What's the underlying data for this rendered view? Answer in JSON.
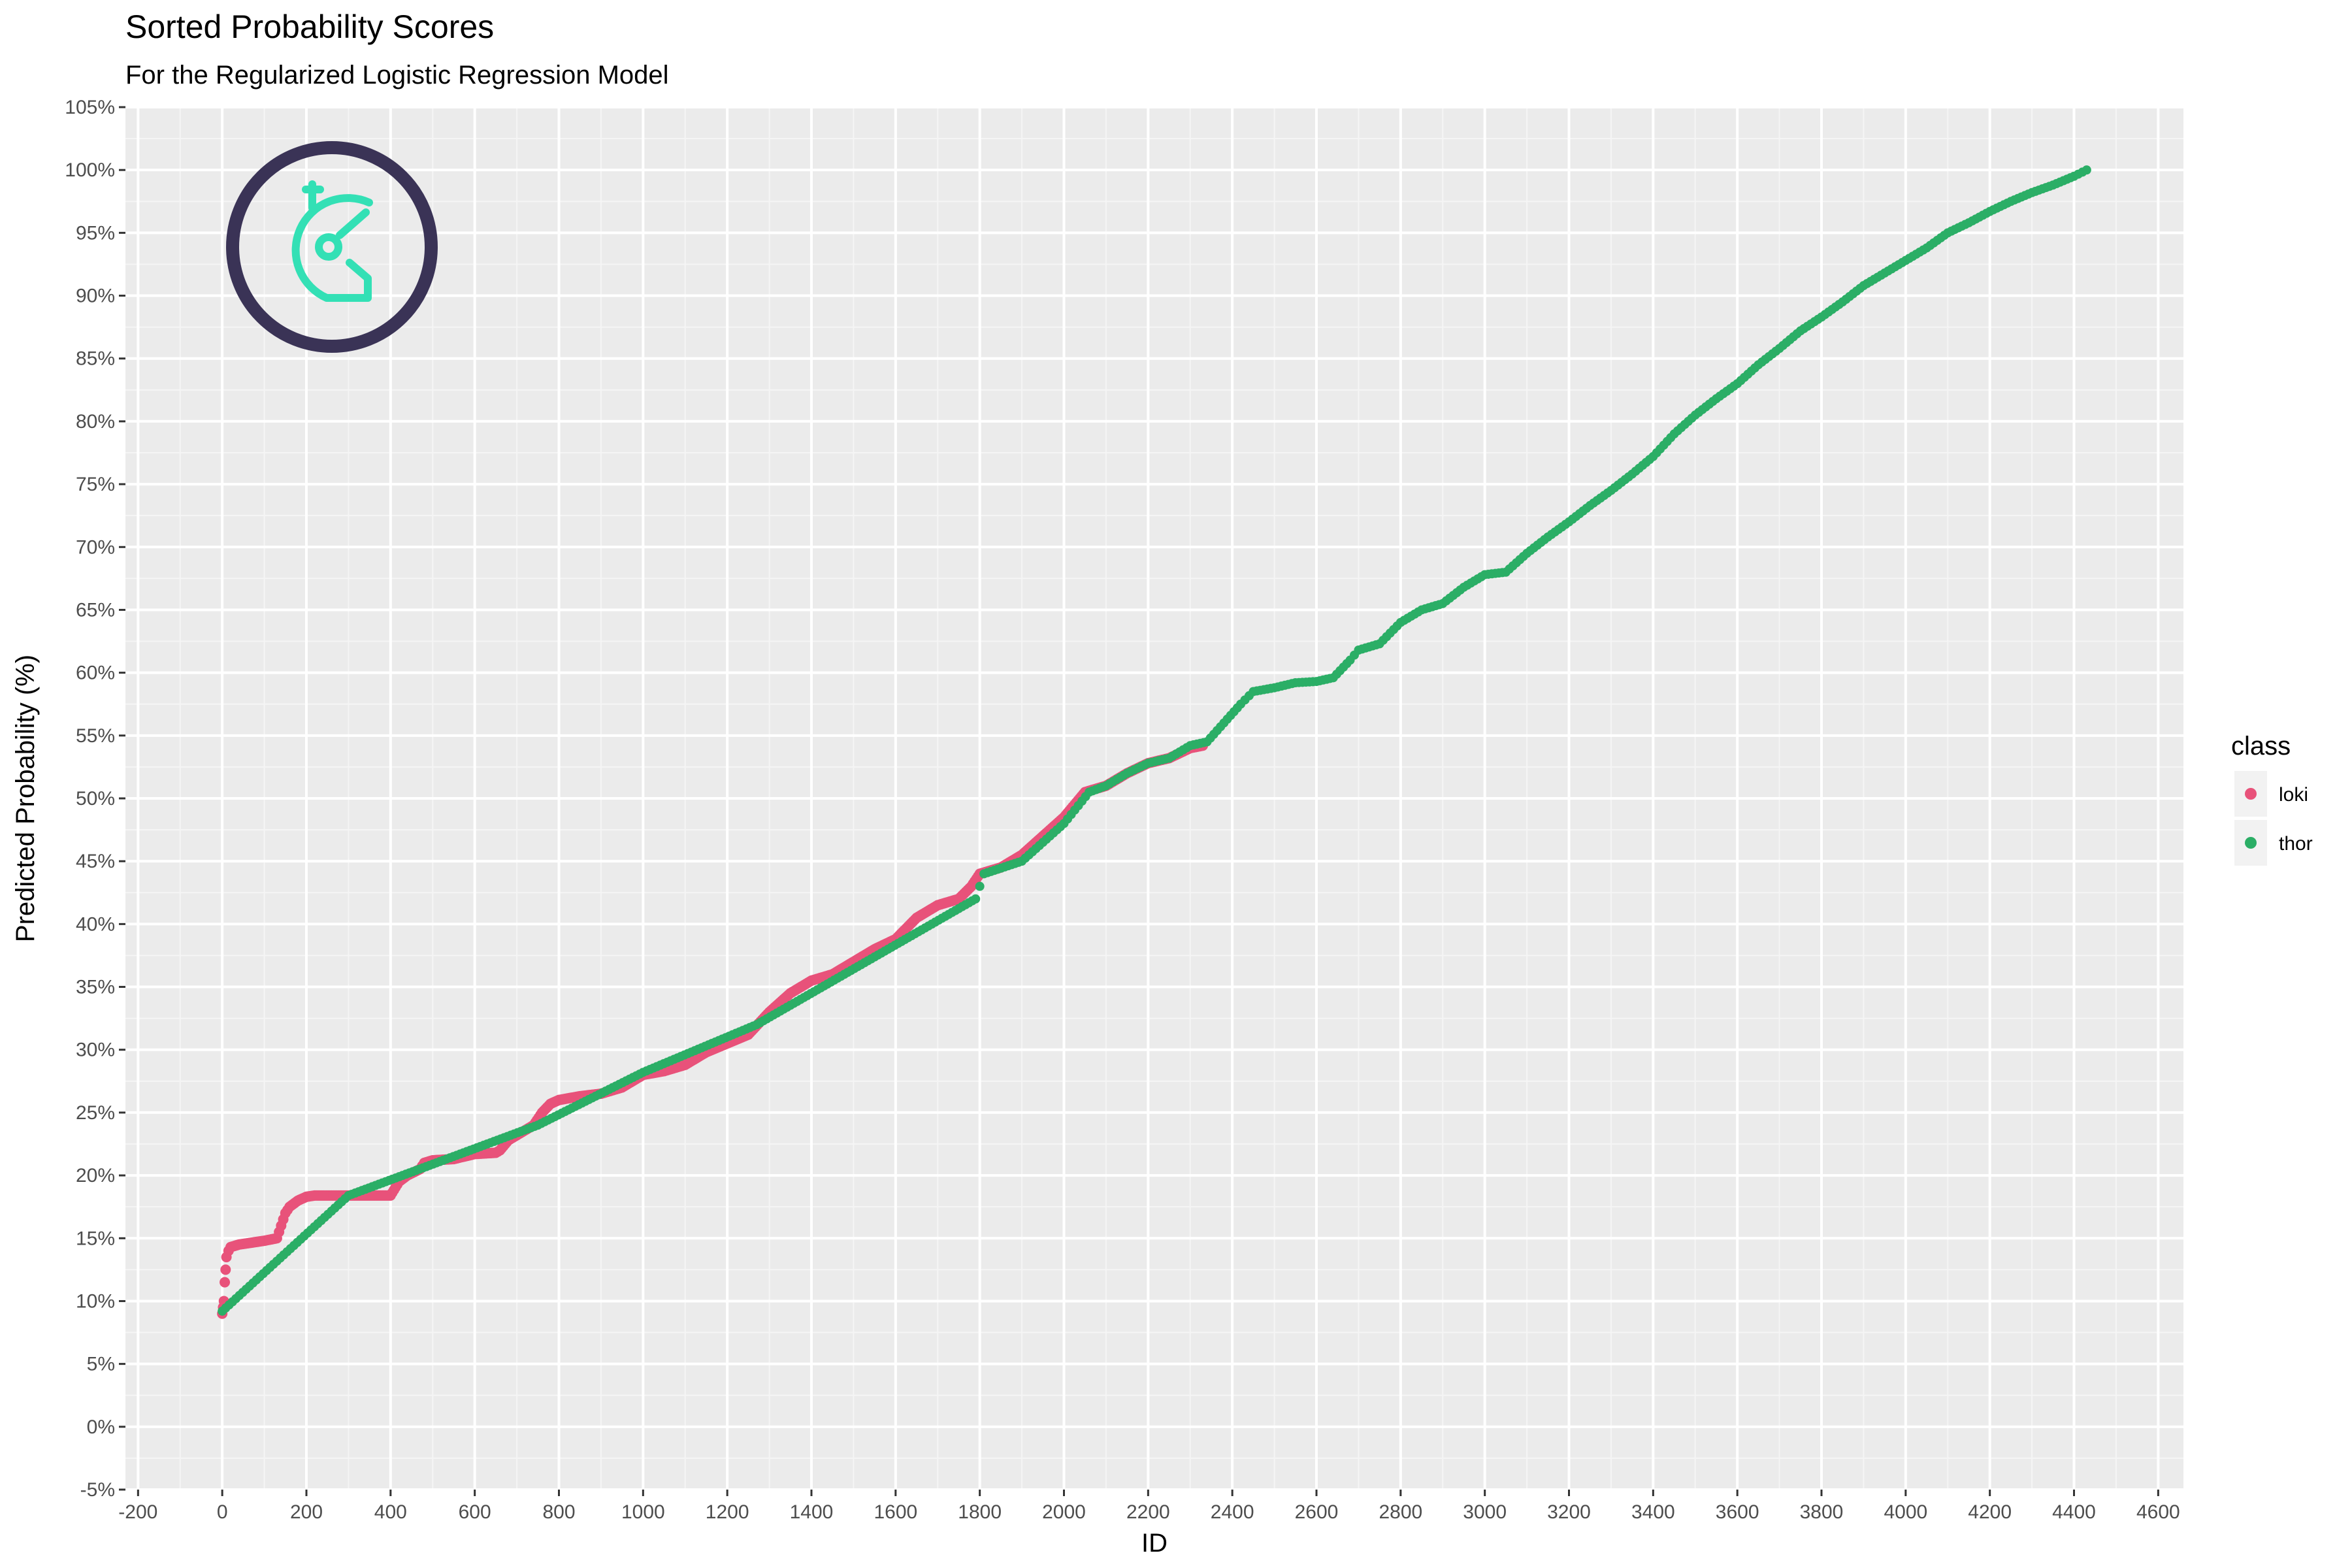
{
  "chart_data": {
    "type": "scatter",
    "title": "Sorted Probability Scores",
    "subtitle": "For the Regularized Logistic Regression Model",
    "xlabel": "ID",
    "ylabel": "Predicted Probability (%)",
    "xlim": [
      -230,
      4660
    ],
    "ylim": [
      -5,
      105
    ],
    "x_ticks": [
      -200,
      0,
      200,
      400,
      600,
      800,
      1000,
      1200,
      1400,
      1600,
      1800,
      2000,
      2200,
      2400,
      2600,
      2800,
      3000,
      3200,
      3400,
      3600,
      3800,
      4000,
      4200,
      4400,
      4600
    ],
    "x_tick_labels": [
      "-200",
      "0",
      "200",
      "400",
      "600",
      "800",
      "1000",
      "1200",
      "1400",
      "1600",
      "1800",
      "2000",
      "2200",
      "2400",
      "2600",
      "2800",
      "3000",
      "3200",
      "3400",
      "3600",
      "3800",
      "4000",
      "4200",
      "4400",
      "4600"
    ],
    "y_ticks": [
      -5,
      0,
      5,
      10,
      15,
      20,
      25,
      30,
      35,
      40,
      45,
      50,
      55,
      60,
      65,
      70,
      75,
      80,
      85,
      90,
      95,
      100,
      105
    ],
    "y_tick_labels": [
      "-5%",
      "0%",
      "5%",
      "10%",
      "15%",
      "20%",
      "25%",
      "30%",
      "35%",
      "40%",
      "45%",
      "50%",
      "55%",
      "60%",
      "65%",
      "70%",
      "75%",
      "80%",
      "85%",
      "90%",
      "95%",
      "100%",
      "105%"
    ],
    "grid": true,
    "legend": {
      "title": "class",
      "placement": "right",
      "entries": [
        {
          "label": "loki",
          "color": "#E8527A"
        },
        {
          "label": "thor",
          "color": "#2BAE66"
        }
      ]
    },
    "series": [
      {
        "name": "loki",
        "color": "#E8527A",
        "x": [
          0,
          2,
          4,
          6,
          8,
          10,
          15,
          20,
          40,
          60,
          80,
          100,
          130,
          140,
          150,
          160,
          180,
          200,
          220,
          300,
          400,
          420,
          440,
          470,
          480,
          500,
          550,
          600,
          650,
          660,
          680,
          700,
          740,
          760,
          780,
          800,
          850,
          900,
          950,
          1000,
          1050,
          1100,
          1150,
          1200,
          1250,
          1300,
          1350,
          1400,
          1450,
          1500,
          1550,
          1600,
          1650,
          1700,
          1750,
          1780,
          1800,
          1850,
          1900,
          1950,
          2000,
          2050,
          2100,
          2150,
          2200,
          2250,
          2300,
          2330
        ],
        "y": [
          9.0,
          9.5,
          10.0,
          11.5,
          12.5,
          13.5,
          14.0,
          14.3,
          14.5,
          14.6,
          14.7,
          14.8,
          15.0,
          16.0,
          17.0,
          17.5,
          18.0,
          18.3,
          18.4,
          18.4,
          18.4,
          19.5,
          20.0,
          20.5,
          21.0,
          21.2,
          21.3,
          21.7,
          21.8,
          22.0,
          22.8,
          23.2,
          24.0,
          25.0,
          25.7,
          26.0,
          26.3,
          26.5,
          27.0,
          28.0,
          28.3,
          28.8,
          29.8,
          30.5,
          31.2,
          33.0,
          34.5,
          35.5,
          36.0,
          37.0,
          38.0,
          38.8,
          40.5,
          41.5,
          42.0,
          43.0,
          44.0,
          44.5,
          45.5,
          47.0,
          48.5,
          50.5,
          51.0,
          52.0,
          52.8,
          53.2,
          54.0,
          54.2
        ]
      },
      {
        "name": "thor",
        "color": "#2BAE66",
        "x": [
          0,
          300,
          750,
          1000,
          1270,
          1790,
          1810,
          1900,
          2000,
          2060,
          2100,
          2150,
          2200,
          2250,
          2300,
          2340,
          2380,
          2420,
          2450,
          2500,
          2550,
          2600,
          2640,
          2680,
          2700,
          2750,
          2800,
          2850,
          2900,
          2950,
          3000,
          3050,
          3100,
          3150,
          3200,
          3250,
          3300,
          3350,
          3400,
          3450,
          3500,
          3550,
          3600,
          3650,
          3700,
          3750,
          3800,
          3850,
          3900,
          3950,
          4000,
          4050,
          4100,
          4150,
          4200,
          4250,
          4300,
          4350,
          4400,
          4430
        ],
        "y": [
          9.2,
          18.4,
          24.0,
          28.2,
          32.0,
          42.0,
          44.0,
          45.0,
          48.0,
          50.5,
          51.0,
          52.0,
          52.8,
          53.2,
          54.2,
          54.5,
          56.0,
          57.5,
          58.5,
          58.8,
          59.2,
          59.3,
          59.6,
          61.0,
          61.8,
          62.3,
          64.0,
          65.0,
          65.5,
          66.8,
          67.8,
          68.0,
          69.5,
          70.8,
          72.0,
          73.3,
          74.5,
          75.8,
          77.2,
          79.0,
          80.5,
          81.8,
          83.0,
          84.5,
          85.8,
          87.2,
          88.3,
          89.5,
          90.8,
          91.8,
          92.8,
          93.8,
          95.0,
          95.8,
          96.7,
          97.5,
          98.2,
          98.8,
          99.5,
          100.0
        ]
      }
    ]
  },
  "logo": {
    "ring_color": "#3A3356",
    "mark_color": "#33E0B5",
    "icon": "helmet-logo-icon"
  },
  "colors": {
    "panel_bg": "#EBEBEB",
    "grid_major": "#FFFFFF",
    "grid_minor": "#F5F5F5",
    "tick": "#333333"
  }
}
